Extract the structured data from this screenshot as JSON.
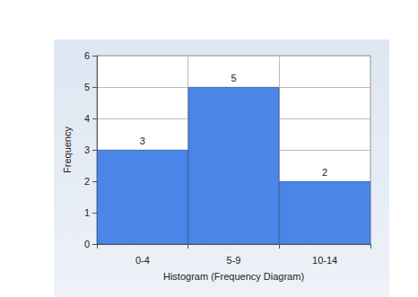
{
  "chart_data": {
    "type": "histogram",
    "categories": [
      "0-4",
      "5-9",
      "10-14"
    ],
    "values": [
      3,
      5,
      2
    ],
    "color": "#4a86e8",
    "ylim": [
      0,
      6
    ],
    "yticks": [
      0,
      1,
      2,
      3,
      4,
      5,
      6
    ],
    "xlabel": "Histogram (Frequency Diagram)",
    "ylabel": "Frequency",
    "grid": true,
    "data_labels": true
  }
}
